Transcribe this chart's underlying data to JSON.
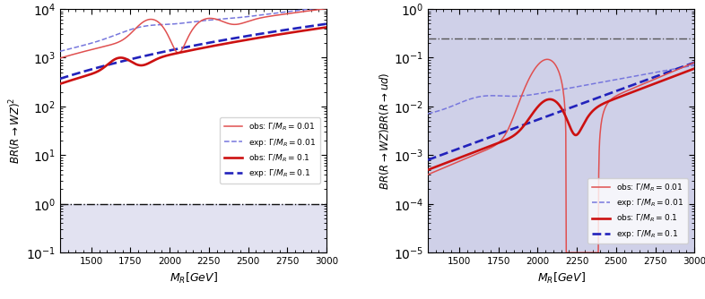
{
  "xlim": [
    1300,
    3000
  ],
  "left_ylim": [
    0.1,
    10000
  ],
  "right_ylim": [
    1e-05,
    1.0
  ],
  "left_ylabel": "$BR(R\\to WZ)^2$",
  "right_ylabel": "$BR(R\\to WZ)BR(R\\to ud)$",
  "xlabel": "$M_R[GeV]$",
  "left_hline": 1.0,
  "left_hline_color": "#111111",
  "left_hline_style": "-.",
  "right_hline": 0.25,
  "right_hline_color": "#555555",
  "right_hline_style": "-.",
  "shade_color": "#cfd0e8",
  "shade_alpha": 0.6,
  "col_obs_thin": "#e05050",
  "col_obs_thick": "#cc1111",
  "col_exp_thin": "#7777dd",
  "col_exp_thick": "#2222bb",
  "lw_thin": 1.1,
  "lw_thick": 1.9,
  "left_legend": [
    "obs: $\\Gamma/M_R = 0.01$",
    "exp: $\\Gamma/M_R = 0.01$",
    "obs: $\\Gamma/M_R = 0.1$",
    "exp: $\\Gamma/M_R = 0.1$"
  ],
  "right_legend": [
    "obs: $\\Gamma/M_R=0.01$",
    "exp: $\\Gamma/M_R=0.01$",
    "obs: $\\Gamma/M_R=0.1$",
    "exp: $\\Gamma/M_R=0.1$"
  ]
}
